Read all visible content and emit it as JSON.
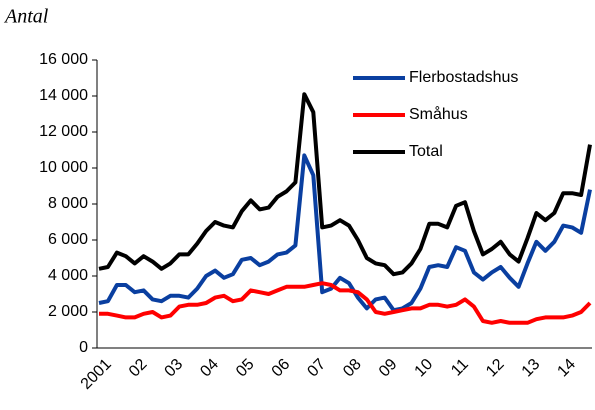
{
  "chart_data": {
    "type": "line",
    "y_label": "Antal",
    "categories": [
      "2001",
      null,
      null,
      null,
      "02",
      null,
      null,
      null,
      "03",
      null,
      null,
      null,
      "04",
      null,
      null,
      null,
      "05",
      null,
      null,
      null,
      "06",
      null,
      null,
      null,
      "07",
      null,
      null,
      null,
      "08",
      null,
      null,
      null,
      "09",
      null,
      null,
      null,
      "10",
      null,
      null,
      null,
      "11",
      null,
      null,
      null,
      "12",
      null,
      null,
      null,
      "13",
      null,
      null,
      null,
      "14",
      null,
      null,
      null
    ],
    "series": [
      {
        "name": "Flerbostadshus",
        "color": "#0a3fa0",
        "values": [
          2500,
          2600,
          3500,
          3500,
          3100,
          3200,
          2700,
          2600,
          2900,
          2900,
          2800,
          3300,
          4000,
          4300,
          3900,
          4100,
          4900,
          5000,
          4600,
          4800,
          5200,
          5300,
          5700,
          10700,
          9600,
          3100,
          3300,
          3900,
          3600,
          2800,
          2200,
          2700,
          2800,
          2100,
          2200,
          2500,
          3300,
          4500,
          4600,
          4500,
          5600,
          5400,
          4200,
          3800,
          4200,
          4500,
          3900,
          3400,
          4700,
          5900,
          5400,
          5900,
          6800,
          6700,
          6400,
          8800
        ]
      },
      {
        "name": "Småhus",
        "color": "#ff0000",
        "values": [
          1900,
          1900,
          1800,
          1700,
          1700,
          1900,
          2000,
          1700,
          1800,
          2300,
          2400,
          2400,
          2500,
          2800,
          2900,
          2600,
          2700,
          3200,
          3100,
          3000,
          3200,
          3400,
          3400,
          3400,
          3500,
          3600,
          3500,
          3200,
          3200,
          3100,
          2700,
          2000,
          1900,
          2000,
          2100,
          2200,
          2200,
          2400,
          2400,
          2300,
          2400,
          2700,
          2300,
          1500,
          1400,
          1500,
          1400,
          1400,
          1400,
          1600,
          1700,
          1700,
          1700,
          1800,
          2000,
          2500
        ]
      },
      {
        "name": "Total",
        "color": "#000000",
        "values": [
          4400,
          4500,
          5300,
          5100,
          4700,
          5100,
          4800,
          4400,
          4700,
          5200,
          5200,
          5800,
          6500,
          7000,
          6800,
          6700,
          7600,
          8200,
          7700,
          7800,
          8400,
          8700,
          9200,
          14100,
          13100,
          6700,
          6800,
          7100,
          6800,
          6000,
          5000,
          4700,
          4600,
          4100,
          4200,
          4700,
          5500,
          6900,
          6900,
          6700,
          7900,
          8100,
          6500,
          5200,
          5500,
          5900,
          5200,
          4800,
          6100,
          7500,
          7100,
          7500,
          8600,
          8600,
          8500,
          11300
        ]
      }
    ],
    "ylim": [
      0,
      16000
    ],
    "yticks": [
      0,
      {
        "value": 2000,
        "label": "2 000"
      },
      {
        "value": 4000,
        "label": "4 000"
      },
      {
        "value": 6000,
        "label": "6 000"
      },
      {
        "value": 8000,
        "label": "8 000"
      },
      {
        "value": 10000,
        "label": "10 000"
      },
      {
        "value": 12000,
        "label": "12 000"
      },
      {
        "value": 14000,
        "label": "14 000"
      },
      {
        "value": 16000,
        "label": "16 000"
      }
    ],
    "legend": "upper right"
  }
}
